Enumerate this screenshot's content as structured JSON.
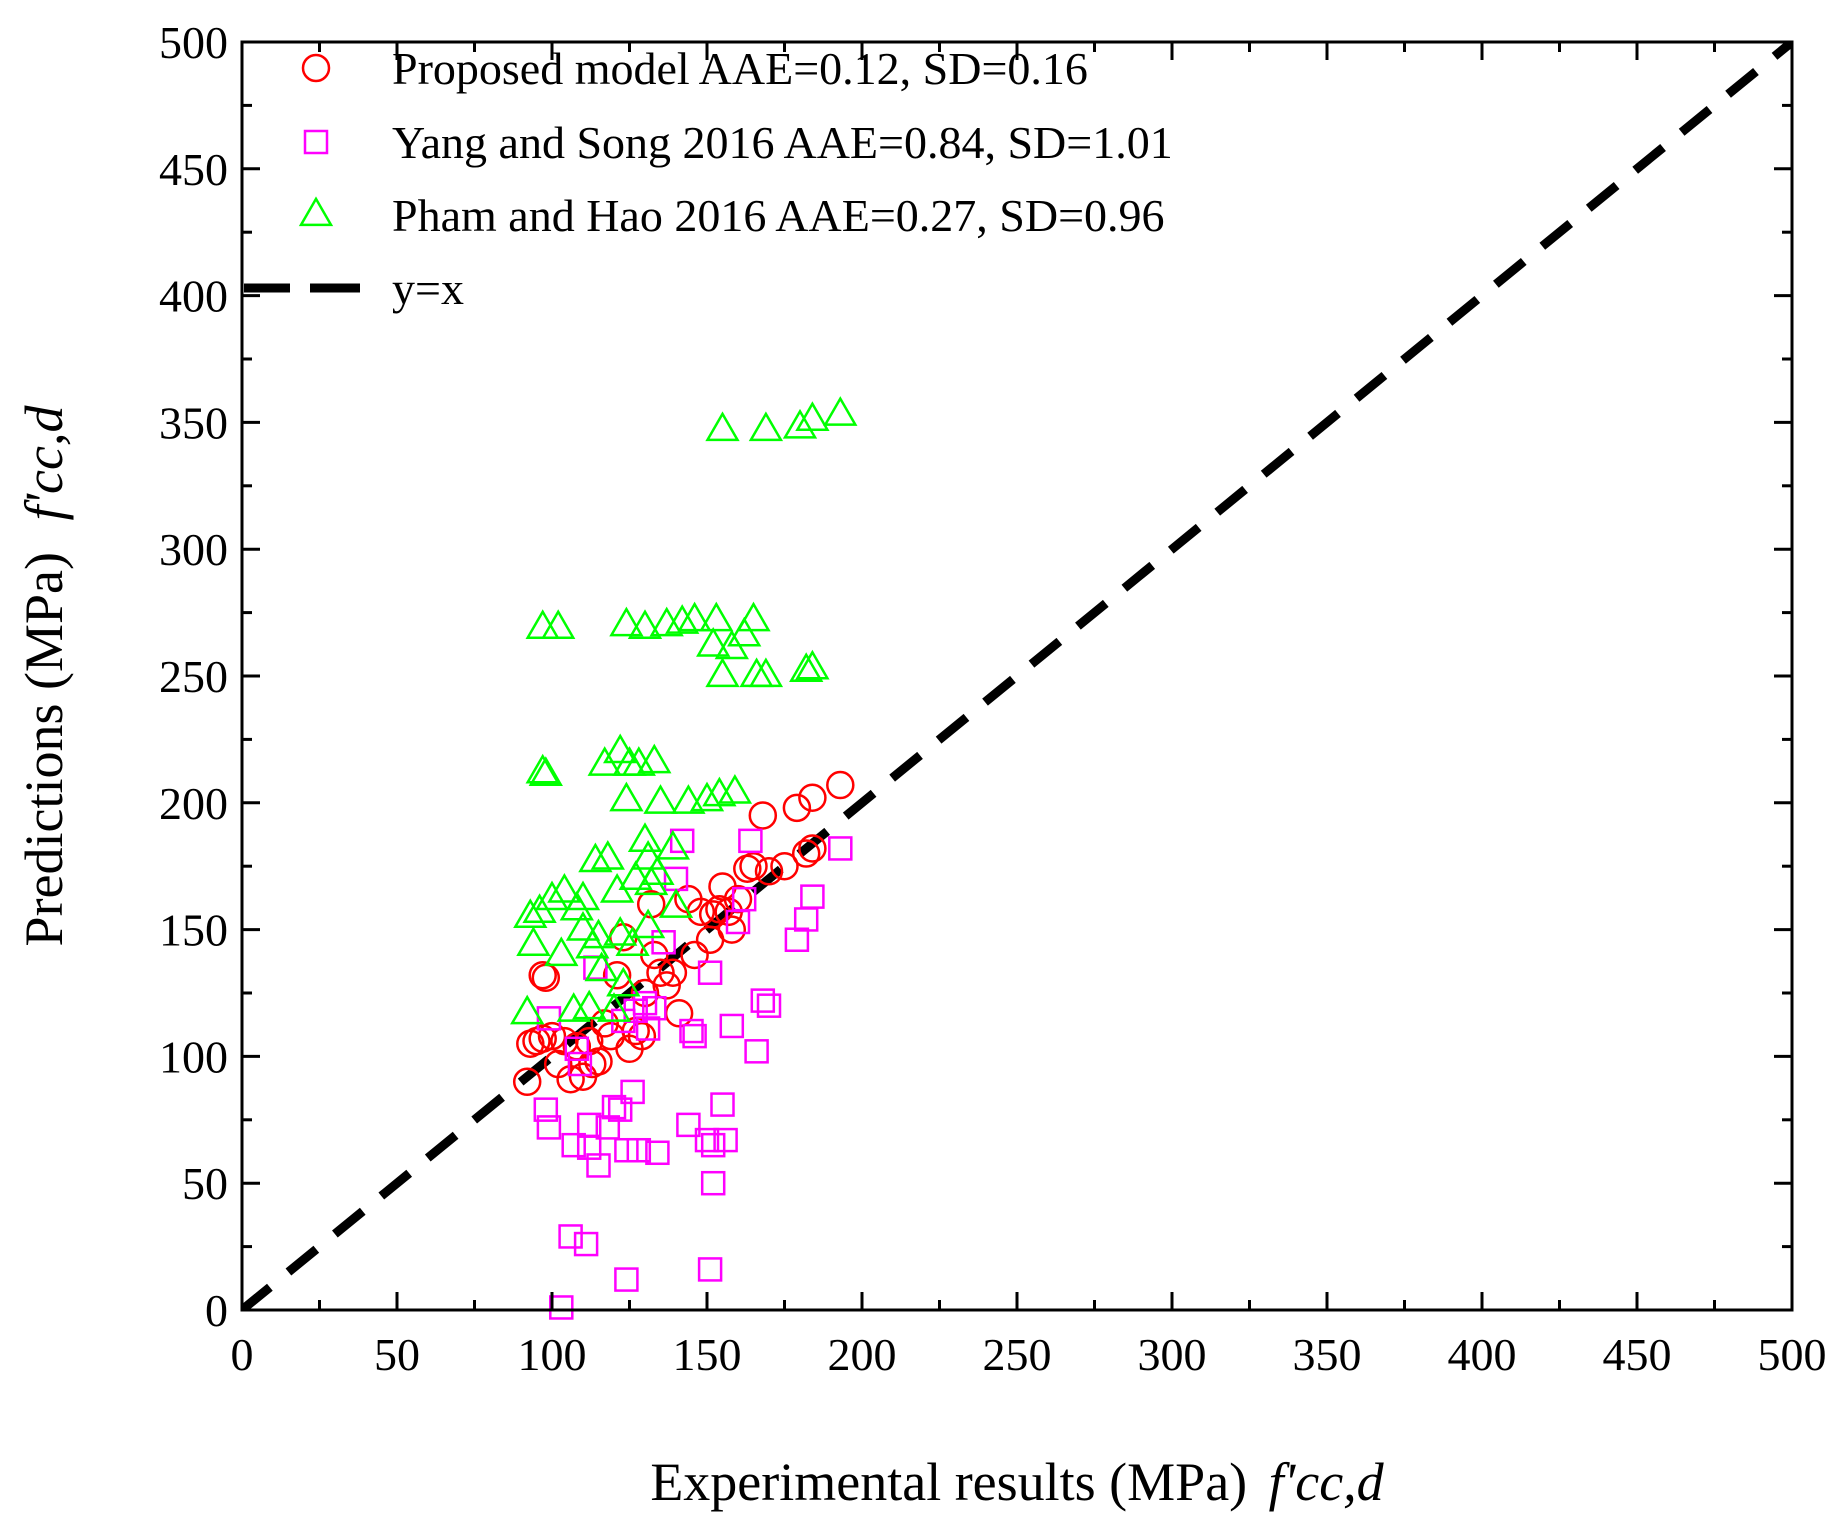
{
  "chart_data": {
    "type": "scatter",
    "title": "",
    "xlabel": "Experimental results (MPa)",
    "xlabel_symbol": "f'cc,d",
    "ylabel": "Predictions (MPa)",
    "ylabel_symbol": "f'cc,d",
    "xlim": [
      0,
      500
    ],
    "ylim": [
      0,
      500
    ],
    "xticks": [
      "0",
      "50",
      "100",
      "150",
      "200",
      "250",
      "300",
      "350",
      "400",
      "450",
      "500"
    ],
    "yticks": [
      "0",
      "50",
      "100",
      "150",
      "200",
      "250",
      "300",
      "350",
      "400",
      "450",
      "500"
    ],
    "grid": false,
    "legend_position": "top-left",
    "series": [
      {
        "name": "Proposed model AAE=0.12, SD=0.16",
        "marker": "circle",
        "color": "#ff0000",
        "points": [
          [
            92,
            90
          ],
          [
            93,
            105
          ],
          [
            95,
            106
          ],
          [
            97,
            107
          ],
          [
            97,
            132
          ],
          [
            98,
            131
          ],
          [
            100,
            108
          ],
          [
            102,
            97
          ],
          [
            104,
            106
          ],
          [
            106,
            91
          ],
          [
            108,
            104
          ],
          [
            110,
            92
          ],
          [
            112,
            106
          ],
          [
            113,
            97
          ],
          [
            115,
            98
          ],
          [
            117,
            113
          ],
          [
            119,
            108
          ],
          [
            121,
            132
          ],
          [
            123,
            147
          ],
          [
            125,
            103
          ],
          [
            127,
            110
          ],
          [
            129,
            108
          ],
          [
            130,
            125
          ],
          [
            132,
            160
          ],
          [
            133,
            140
          ],
          [
            135,
            133
          ],
          [
            137,
            128
          ],
          [
            139,
            133
          ],
          [
            141,
            117
          ],
          [
            144,
            162
          ],
          [
            146,
            140
          ],
          [
            148,
            157
          ],
          [
            151,
            146
          ],
          [
            152,
            156
          ],
          [
            154,
            158
          ],
          [
            155,
            167
          ],
          [
            157,
            157
          ],
          [
            158,
            150
          ],
          [
            160,
            162
          ],
          [
            163,
            174
          ],
          [
            165,
            175
          ],
          [
            168,
            195
          ],
          [
            170,
            173
          ],
          [
            175,
            175
          ],
          [
            179,
            198
          ],
          [
            182,
            180
          ],
          [
            184,
            182
          ],
          [
            184,
            202
          ],
          [
            193,
            207
          ]
        ]
      },
      {
        "name": "Yang and Song 2016 AAE=0.84, SD=1.01",
        "marker": "square",
        "color": "#ff00ff",
        "points": [
          [
            98,
            79
          ],
          [
            99,
            72
          ],
          [
            99,
            115
          ],
          [
            103,
            1
          ],
          [
            106,
            29
          ],
          [
            107,
            65
          ],
          [
            108,
            103
          ],
          [
            109,
            97
          ],
          [
            111,
            26
          ],
          [
            112,
            64
          ],
          [
            112,
            73
          ],
          [
            114,
            135
          ],
          [
            115,
            57
          ],
          [
            118,
            72
          ],
          [
            120,
            80
          ],
          [
            122,
            79
          ],
          [
            123,
            114
          ],
          [
            124,
            12
          ],
          [
            124,
            63
          ],
          [
            126,
            86
          ],
          [
            127,
            118
          ],
          [
            128,
            63
          ],
          [
            130,
            121
          ],
          [
            131,
            111
          ],
          [
            133,
            119
          ],
          [
            134,
            62
          ],
          [
            136,
            145
          ],
          [
            140,
            170
          ],
          [
            142,
            185
          ],
          [
            144,
            73
          ],
          [
            145,
            110
          ],
          [
            146,
            108
          ],
          [
            150,
            67
          ],
          [
            151,
            133
          ],
          [
            151,
            16
          ],
          [
            152,
            65
          ],
          [
            152,
            50
          ],
          [
            155,
            81
          ],
          [
            156,
            67
          ],
          [
            158,
            112
          ],
          [
            160,
            153
          ],
          [
            162,
            162
          ],
          [
            164,
            185
          ],
          [
            166,
            102
          ],
          [
            168,
            122
          ],
          [
            170,
            120
          ],
          [
            179,
            146
          ],
          [
            182,
            154
          ],
          [
            184,
            163
          ],
          [
            193,
            182
          ]
        ]
      },
      {
        "name": "Pham and Hao 2016 AAE=0.27, SD=0.96",
        "marker": "triangle",
        "color": "#00ff00",
        "points": [
          [
            92,
            117
          ],
          [
            93,
            155
          ],
          [
            94,
            144
          ],
          [
            96,
            157
          ],
          [
            97,
            269
          ],
          [
            97,
            212
          ],
          [
            98,
            211
          ],
          [
            100,
            162
          ],
          [
            102,
            269
          ],
          [
            103,
            140
          ],
          [
            104,
            165
          ],
          [
            107,
            118
          ],
          [
            108,
            158
          ],
          [
            110,
            150
          ],
          [
            110,
            162
          ],
          [
            112,
            119
          ],
          [
            113,
            143
          ],
          [
            114,
            177
          ],
          [
            115,
            147
          ],
          [
            116,
            134
          ],
          [
            117,
            215
          ],
          [
            118,
            178
          ],
          [
            120,
            118
          ],
          [
            121,
            165
          ],
          [
            122,
            148
          ],
          [
            122,
            220
          ],
          [
            123,
            128
          ],
          [
            124,
            201
          ],
          [
            124,
            270
          ],
          [
            125,
            215
          ],
          [
            126,
            144
          ],
          [
            127,
            170
          ],
          [
            128,
            215
          ],
          [
            130,
            269
          ],
          [
            130,
            185
          ],
          [
            131,
            178
          ],
          [
            131,
            151
          ],
          [
            132,
            168
          ],
          [
            133,
            216
          ],
          [
            134,
            172
          ],
          [
            135,
            200
          ],
          [
            137,
            270
          ],
          [
            139,
            182
          ],
          [
            140,
            159
          ],
          [
            142,
            271
          ],
          [
            144,
            200
          ],
          [
            146,
            272
          ],
          [
            150,
            201
          ],
          [
            152,
            262
          ],
          [
            153,
            272
          ],
          [
            154,
            203
          ],
          [
            155,
            250
          ],
          [
            155,
            347
          ],
          [
            158,
            261
          ],
          [
            159,
            204
          ],
          [
            162,
            266
          ],
          [
            165,
            272
          ],
          [
            166,
            250
          ],
          [
            169,
            250
          ],
          [
            169,
            347
          ],
          [
            180,
            348
          ],
          [
            182,
            252
          ],
          [
            184,
            253
          ],
          [
            184,
            351
          ],
          [
            193,
            353
          ]
        ]
      },
      {
        "name": "y=x",
        "type": "line",
        "style": "dashed",
        "color": "#000000",
        "x": [
          0,
          500
        ],
        "y": [
          0,
          500
        ]
      }
    ]
  }
}
